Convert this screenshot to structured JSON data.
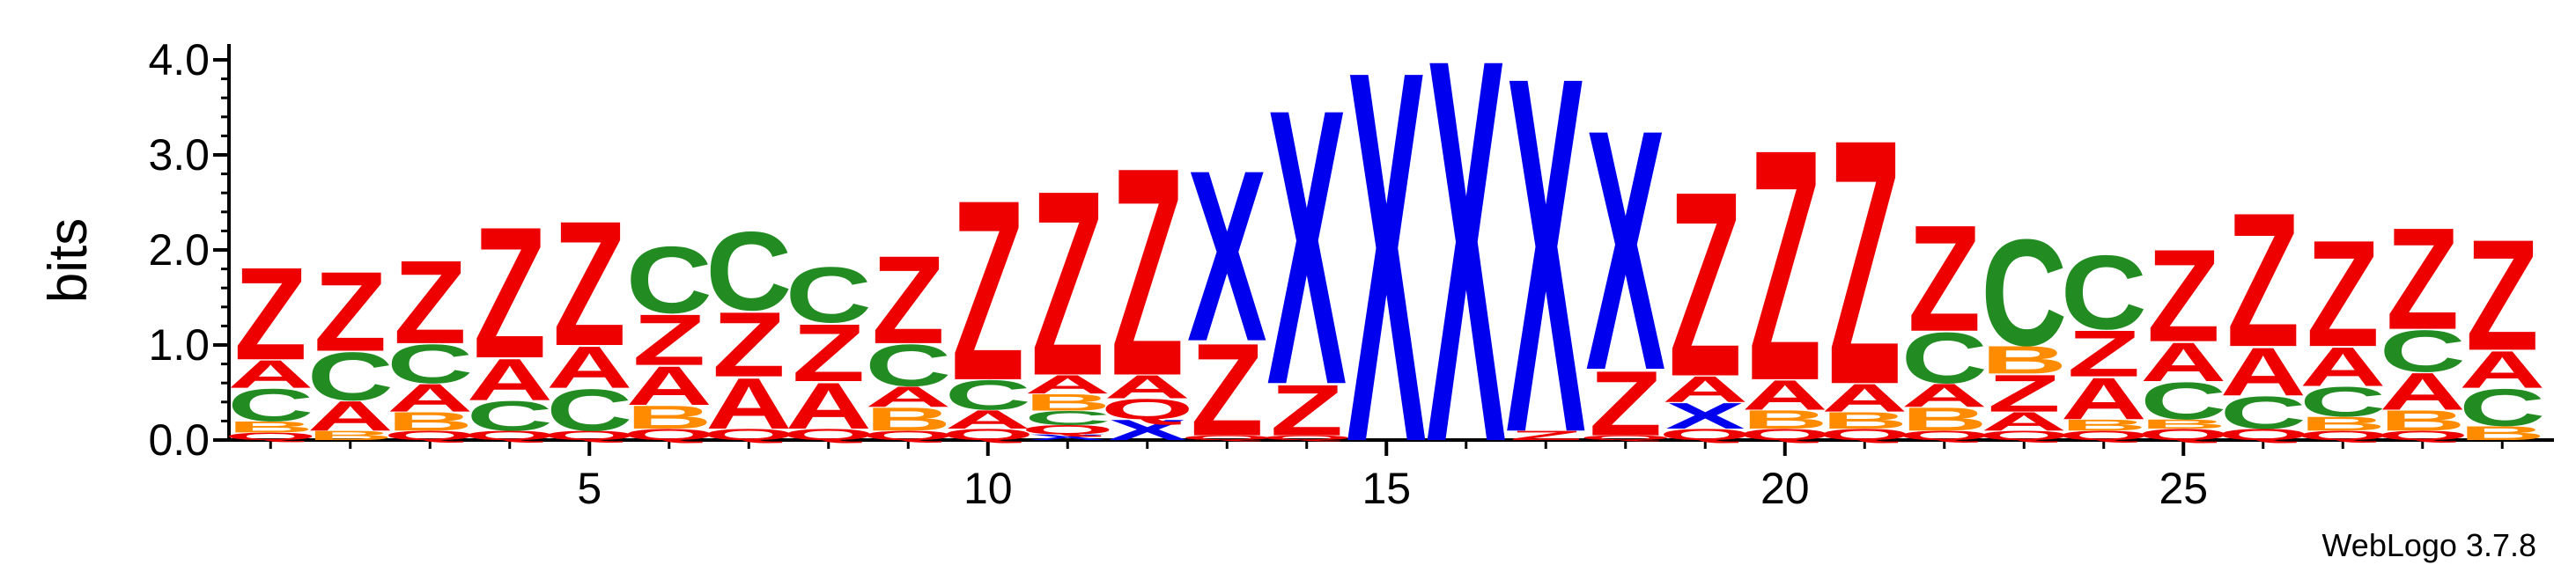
{
  "chart_data": {
    "type": "sequence-logo",
    "ylabel": "bits",
    "xlabel": "",
    "ylim": [
      0,
      4.0
    ],
    "y_ticks": [
      "0.0",
      "1.0",
      "2.0",
      "3.0",
      "4.0"
    ],
    "x_ticks": [
      5,
      10,
      15,
      20,
      25
    ],
    "credit": "WebLogo 3.7.8",
    "colors": {
      "Z": "#ee0000",
      "X": "#0000ee",
      "C": "#228b22",
      "A": "#ee0000",
      "B": "#ff8c00",
      "Q": "#ee0000"
    },
    "positions": [
      {
        "pos": 1,
        "stack": [
          [
            "Q",
            0.08
          ],
          [
            "B",
            0.12
          ],
          [
            "C",
            0.35
          ],
          [
            "A",
            0.3
          ],
          [
            "Z",
            1.0
          ]
        ]
      },
      {
        "pos": 2,
        "stack": [
          [
            "B",
            0.1
          ],
          [
            "A",
            0.32
          ],
          [
            "C",
            0.52
          ],
          [
            "Z",
            0.86
          ]
        ]
      },
      {
        "pos": 3,
        "stack": [
          [
            "Q",
            0.1
          ],
          [
            "B",
            0.2
          ],
          [
            "A",
            0.3
          ],
          [
            "C",
            0.42
          ],
          [
            "Z",
            0.9
          ]
        ]
      },
      {
        "pos": 4,
        "stack": [
          [
            "Q",
            0.1
          ],
          [
            "C",
            0.32
          ],
          [
            "A",
            0.45
          ],
          [
            "Z",
            1.42
          ]
        ]
      },
      {
        "pos": 5,
        "stack": [
          [
            "Q",
            0.1
          ],
          [
            "C",
            0.45
          ],
          [
            "A",
            0.45
          ],
          [
            "Z",
            1.35
          ]
        ]
      },
      {
        "pos": 6,
        "stack": [
          [
            "Q",
            0.12
          ],
          [
            "B",
            0.25
          ],
          [
            "A",
            0.42
          ],
          [
            "Z",
            0.55
          ],
          [
            "C",
            0.72
          ]
        ]
      },
      {
        "pos": 7,
        "stack": [
          [
            "Q",
            0.12
          ],
          [
            "A",
            0.55
          ],
          [
            "Z",
            0.7
          ],
          [
            "C",
            0.85
          ]
        ]
      },
      {
        "pos": 8,
        "stack": [
          [
            "Q",
            0.12
          ],
          [
            "A",
            0.5
          ],
          [
            "Z",
            0.62
          ],
          [
            "C",
            0.6
          ]
        ]
      },
      {
        "pos": 9,
        "stack": [
          [
            "Q",
            0.1
          ],
          [
            "B",
            0.25
          ],
          [
            "A",
            0.22
          ],
          [
            "C",
            0.45
          ],
          [
            "Z",
            0.95
          ]
        ]
      },
      {
        "pos": 10,
        "stack": [
          [
            "Q",
            0.12
          ],
          [
            "A",
            0.2
          ],
          [
            "C",
            0.32
          ],
          [
            "Z",
            1.95
          ]
        ]
      },
      {
        "pos": 11,
        "stack": [
          [
            "X",
            0.06
          ],
          [
            "Q",
            0.1
          ],
          [
            "C",
            0.15
          ],
          [
            "B",
            0.18
          ],
          [
            "A",
            0.2
          ],
          [
            "Z",
            2.0
          ]
        ]
      },
      {
        "pos": 12,
        "stack": [
          [
            "X",
            0.22
          ],
          [
            "Q",
            0.22
          ],
          [
            "A",
            0.25
          ],
          [
            "Z",
            2.25
          ]
        ]
      },
      {
        "pos": 13,
        "stack": [
          [
            "Q",
            0.05
          ],
          [
            "Z",
            1.0
          ],
          [
            "X",
            1.85
          ]
        ]
      },
      {
        "pos": 14,
        "stack": [
          [
            "Q",
            0.05
          ],
          [
            "Z",
            0.55
          ],
          [
            "X",
            2.98
          ]
        ]
      },
      {
        "pos": 15,
        "stack": [
          [
            "X",
            4.02
          ]
        ]
      },
      {
        "pos": 16,
        "stack": [
          [
            "X",
            4.15
          ]
        ]
      },
      {
        "pos": 17,
        "stack": [
          [
            "Z",
            0.1
          ],
          [
            "X",
            3.85
          ]
        ]
      },
      {
        "pos": 18,
        "stack": [
          [
            "Q",
            0.05
          ],
          [
            "Z",
            0.7
          ],
          [
            "X",
            2.6
          ]
        ]
      },
      {
        "pos": 19,
        "stack": [
          [
            "Q",
            0.12
          ],
          [
            "X",
            0.28
          ],
          [
            "A",
            0.28
          ],
          [
            "Z",
            2.0
          ]
        ]
      },
      {
        "pos": 20,
        "stack": [
          [
            "Q",
            0.12
          ],
          [
            "B",
            0.2
          ],
          [
            "A",
            0.32
          ],
          [
            "Z",
            2.5
          ]
        ]
      },
      {
        "pos": 21,
        "stack": [
          [
            "Q",
            0.12
          ],
          [
            "B",
            0.18
          ],
          [
            "A",
            0.3
          ],
          [
            "Z",
            2.65
          ]
        ]
      },
      {
        "pos": 22,
        "stack": [
          [
            "Q",
            0.1
          ],
          [
            "B",
            0.25
          ],
          [
            "A",
            0.25
          ],
          [
            "C",
            0.55
          ],
          [
            "Z",
            1.15
          ]
        ]
      },
      {
        "pos": 23,
        "stack": [
          [
            "Q",
            0.1
          ],
          [
            "A",
            0.2
          ],
          [
            "Z",
            0.4
          ],
          [
            "B",
            0.3
          ],
          [
            "C",
            1.15
          ]
        ]
      },
      {
        "pos": 24,
        "stack": [
          [
            "Q",
            0.1
          ],
          [
            "B",
            0.12
          ],
          [
            "A",
            0.45
          ],
          [
            "Z",
            0.5
          ],
          [
            "C",
            0.8
          ]
        ]
      },
      {
        "pos": 25,
        "stack": [
          [
            "Q",
            0.12
          ],
          [
            "B",
            0.1
          ],
          [
            "C",
            0.4
          ],
          [
            "A",
            0.42
          ],
          [
            "Z",
            1.0
          ]
        ]
      },
      {
        "pos": 26,
        "stack": [
          [
            "Q",
            0.12
          ],
          [
            "C",
            0.35
          ],
          [
            "A",
            0.52
          ],
          [
            "Z",
            1.45
          ]
        ]
      },
      {
        "pos": 27,
        "stack": [
          [
            "Q",
            0.1
          ],
          [
            "B",
            0.15
          ],
          [
            "C",
            0.32
          ],
          [
            "A",
            0.42
          ],
          [
            "Z",
            1.15
          ]
        ]
      },
      {
        "pos": 28,
        "stack": [
          [
            "Q",
            0.1
          ],
          [
            "B",
            0.22
          ],
          [
            "A",
            0.4
          ],
          [
            "C",
            0.45
          ],
          [
            "Z",
            1.1
          ]
        ]
      },
      {
        "pos": 29,
        "stack": [
          [
            "B",
            0.15
          ],
          [
            "C",
            0.4
          ],
          [
            "A",
            0.4
          ],
          [
            "Z",
            1.2
          ]
        ]
      }
    ]
  }
}
